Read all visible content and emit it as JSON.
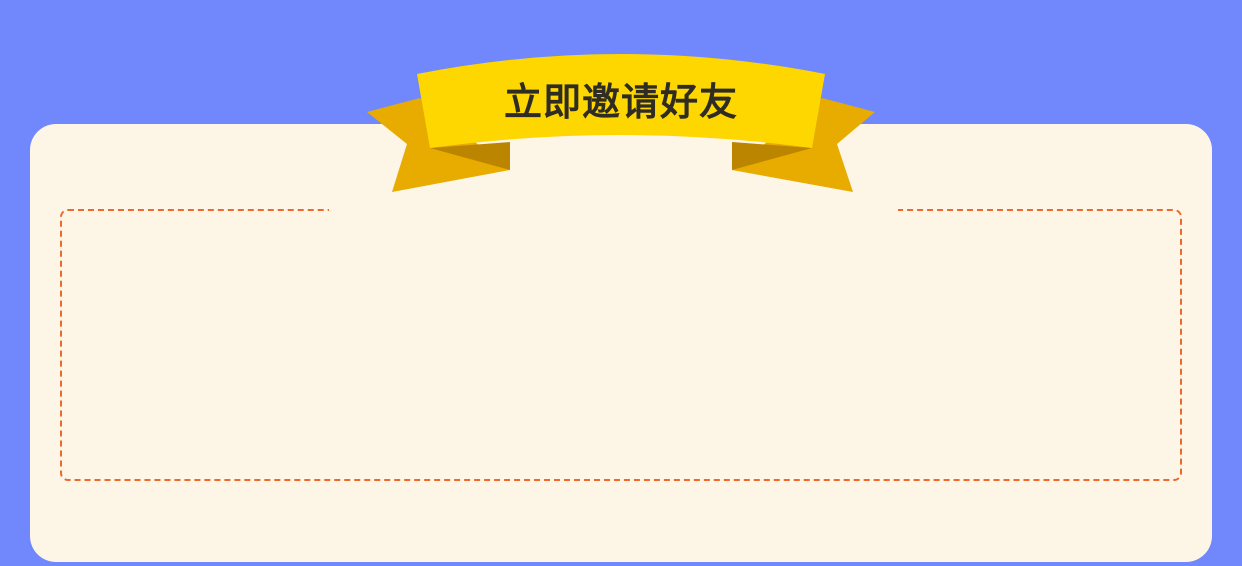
{
  "banner": {
    "title": "立即邀请好友",
    "colors": {
      "front": "#ffd700",
      "tail": "#e8ab00",
      "fold": "#bc8500"
    }
  },
  "panel": {
    "background": "#fdf5e6",
    "border_color": "#ec6a2c"
  },
  "page": {
    "background": "#7188fd"
  }
}
